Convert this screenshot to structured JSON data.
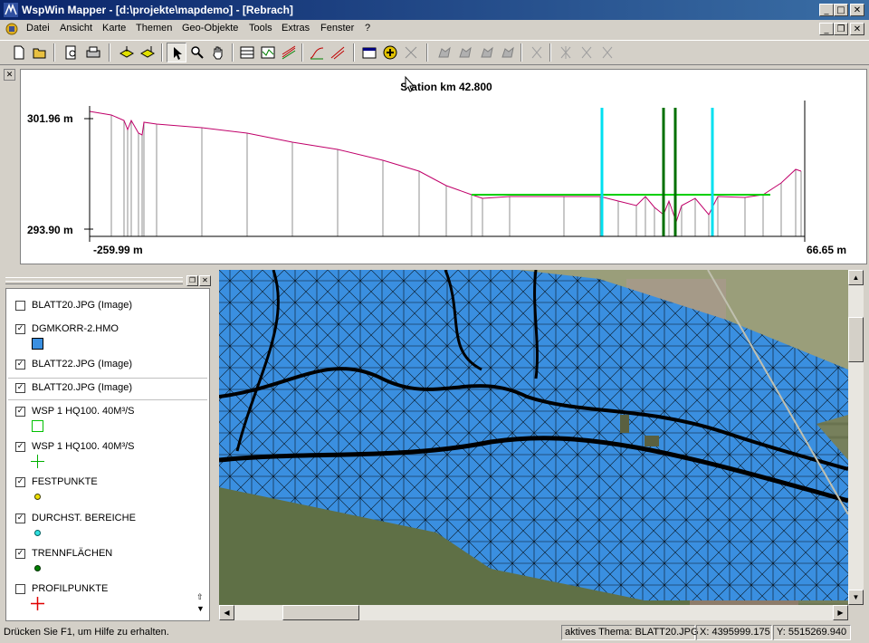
{
  "window": {
    "title": "WspWin Mapper - [d:\\projekte\\mapdemo] - [Rebrach]",
    "controls": [
      "minimize",
      "maximize",
      "close"
    ],
    "mdi_controls": [
      "minimize",
      "restore",
      "close"
    ]
  },
  "menu": [
    "Datei",
    "Ansicht",
    "Karte",
    "Themen",
    "Geo-Objekte",
    "Tools",
    "Extras",
    "Fenster",
    "?"
  ],
  "toolbar": {
    "buttons": [
      "new-icon",
      "open-icon",
      "print-preview-icon",
      "print-icon",
      "layer-add-icon",
      "layer-remove-icon",
      "pointer-icon",
      "zoom-icon",
      "pan-icon",
      "table-icon",
      "profile-icon",
      "section-icon",
      "line-draw-icon",
      "line-edit-icon",
      "properties-icon",
      "add-icon",
      "measure-icon",
      "geo-tool-1-icon",
      "geo-tool-2-icon",
      "geo-tool-3-icon",
      "geo-tool-4-icon",
      "geo-tool-5-icon",
      "geo-tool-6-icon",
      "geo-tool-7-icon"
    ],
    "pressed": "pointer-icon"
  },
  "profile": {
    "title": "Station km 42.800",
    "y_max_label": "301.96 m",
    "y_min_label": "293.90 m",
    "x_min_label": "-259.99 m",
    "x_max_label": "66.65 m",
    "colors": {
      "ground": "#c0006a",
      "water": "#00d000",
      "marker_cyan": "#00e0f0",
      "marker_green": "#007000"
    }
  },
  "legend": {
    "items": [
      {
        "label": "BLATT20.JPG (Image)",
        "checked": false,
        "symbol": "none"
      },
      {
        "label": "DGMKORR-2.HMO",
        "checked": true,
        "symbol": "blue-fill-square"
      },
      {
        "label": "BLATT22.JPG (Image)",
        "checked": true,
        "symbol": "none"
      },
      {
        "label": "BLATT20.JPG (Image)",
        "checked": true,
        "symbol": "none"
      },
      {
        "label": "WSP 1 HQ100. 40M³/S",
        "checked": true,
        "symbol": "green-outline-square"
      },
      {
        "label": "WSP 1 HQ100. 40M³/S",
        "checked": true,
        "symbol": "green-cross"
      },
      {
        "label": "FESTPUNKTE",
        "checked": true,
        "symbol": "yellow-dot"
      },
      {
        "label": "DURCHST. BEREICHE",
        "checked": true,
        "symbol": "cyan-dot"
      },
      {
        "label": "TRENNFLÄCHEN",
        "checked": true,
        "symbol": "green-dot"
      },
      {
        "label": "PROFILPUNKTE",
        "checked": false,
        "symbol": "red-cross"
      }
    ]
  },
  "map": {
    "mesh_color": "#3a8fe0",
    "line_color": "#000000"
  },
  "status": {
    "help": "Drücken Sie F1, um Hilfe zu erhalten.",
    "active_theme": "aktives Thema: BLATT20.JPG",
    "x": "X: 4395999.175",
    "y": "Y: 5515269.940"
  }
}
